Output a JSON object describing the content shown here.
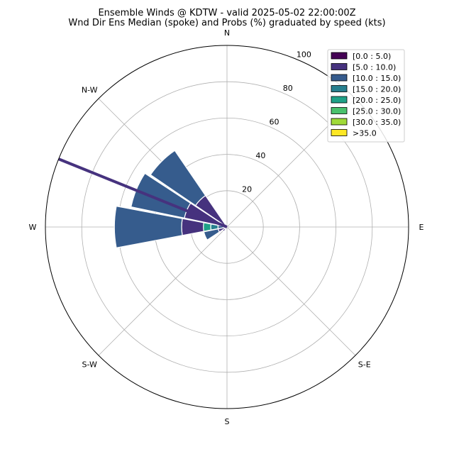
{
  "chart_data": {
    "type": "windrose",
    "title": "Ensemble Winds @ KDTW - valid 2025-05-02 22:00:00Z",
    "subtitle": "Wnd Dir Ens Median (spoke) and Probs (%) graduated by speed (kts)",
    "radial_max": 100,
    "radial_ticks": [
      20,
      40,
      60,
      80,
      100
    ],
    "directions": [
      "N",
      "N-W",
      "W",
      "S-W",
      "S",
      "S-E",
      "E"
    ],
    "speed_bins": [
      "[0.0 : 5.0)",
      "[5.0 : 10.0)",
      "[10.0 : 15.0)",
      "[15.0 : 20.0)",
      "[20.0 : 25.0)",
      "[25.0 : 30.0)",
      "[30.0 : 35.0)",
      ">35.0"
    ],
    "bin_colors": [
      "#440154",
      "#46327e",
      "#365c8d",
      "#277f8e",
      "#1fa187",
      "#4ac16d",
      "#a0da39",
      "#fde725"
    ],
    "median_spoke_direction_deg": 292,
    "sectors": [
      {
        "dir_deg": 270,
        "stack": [
          0,
          25,
          37,
          0,
          0,
          0,
          0,
          0
        ]
      },
      {
        "dir_deg": 292.5,
        "stack": [
          0,
          24,
          30,
          0,
          0,
          0,
          0,
          0
        ]
      },
      {
        "dir_deg": 315,
        "stack": [
          0,
          21,
          30,
          0,
          0,
          0,
          0,
          0
        ]
      },
      {
        "dir_deg": 247.5,
        "stack": [
          0,
          5,
          8,
          0,
          0,
          0,
          0,
          0
        ]
      },
      {
        "dir_deg": 225,
        "stack": [
          0,
          3,
          0,
          0,
          0,
          0,
          0,
          0
        ]
      },
      {
        "dir_deg": 337.5,
        "stack": [
          0,
          2,
          0,
          0,
          0,
          0,
          0,
          0
        ]
      },
      {
        "dir_deg": 0,
        "stack": [
          0,
          1,
          0,
          0,
          0,
          0,
          0,
          0
        ]
      },
      {
        "dir_deg": 270,
        "stack": [
          0,
          2,
          3,
          4,
          4,
          0,
          0,
          0
        ],
        "inner": true
      }
    ]
  }
}
